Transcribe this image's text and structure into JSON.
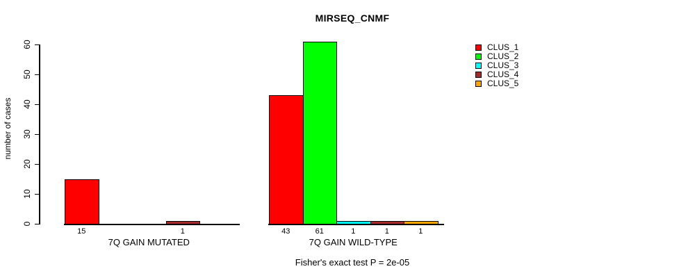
{
  "title": "MIRSEQ_CNMF",
  "chart_data": {
    "type": "bar",
    "title": "MIRSEQ_CNMF",
    "xlabel": "",
    "ylabel": "number of cases",
    "ylim": [
      0,
      60
    ],
    "yticks": [
      0,
      10,
      20,
      30,
      40,
      50,
      60
    ],
    "grid": false,
    "background_color": "#FFFFFF",
    "axis_color": "#000000",
    "series_names": [
      "CLUS_1",
      "CLUS_2",
      "CLUS_3",
      "CLUS_4",
      "CLUS_5"
    ],
    "colors": [
      "#FF0000",
      "#00FF00",
      "#00FFFF",
      "#A52A2A",
      "#FFA500"
    ],
    "groups": [
      {
        "label": "7Q GAIN MUTATED",
        "values": [
          15,
          0,
          0,
          1,
          0
        ],
        "bar_labels": [
          "15",
          "",
          "",
          "1",
          ""
        ]
      },
      {
        "label": "7Q GAIN WILD-TYPE",
        "values": [
          43,
          61,
          1,
          1,
          1
        ],
        "bar_labels": [
          "43",
          "61",
          "1",
          "1",
          "1"
        ]
      }
    ],
    "legend_position": "right",
    "legend": {
      "entries": [
        {
          "label": "CLUS_1",
          "color": "#FF0000"
        },
        {
          "label": "CLUS_2",
          "color": "#00FF00"
        },
        {
          "label": "CLUS_3",
          "color": "#00FFFF"
        },
        {
          "label": "CLUS_4",
          "color": "#A52A2A"
        },
        {
          "label": "CLUS_5",
          "color": "#FFA500"
        }
      ]
    },
    "annotation": "Fisher's exact test P = 2e-05"
  }
}
